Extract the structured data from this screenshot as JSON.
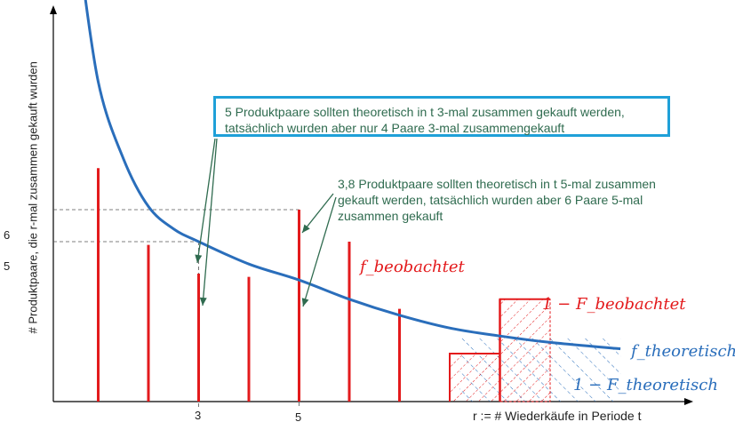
{
  "chart_data": {
    "type": "bar",
    "ylabel": "# Produktpaare, die r-mal zusammen gekauft wurden",
    "xlabel": "r := # Wiederkäufe in Periode t",
    "x_ticks": [
      "3",
      "5"
    ],
    "y_ticks": [
      "5",
      "6"
    ],
    "bars_observed": [
      {
        "r": 1,
        "value": 7.3
      },
      {
        "r": 2,
        "value": 4.9
      },
      {
        "r": 3,
        "value": 4
      },
      {
        "r": 4,
        "value": 3.9
      },
      {
        "r": 5,
        "value": 6
      },
      {
        "r": 6,
        "value": 5
      },
      {
        "r": 7,
        "value": 2.9
      }
    ],
    "tail_steps": [
      {
        "r": 8,
        "value": 1.5
      },
      {
        "r": 9,
        "value": 3.2
      }
    ],
    "theoretical_curve": [
      {
        "r": 0.6,
        "value": 14.3
      },
      {
        "r": 1,
        "value": 10
      },
      {
        "r": 1.5,
        "value": 7.6
      },
      {
        "r": 2,
        "value": 6.1
      },
      {
        "r": 2.5,
        "value": 5.4
      },
      {
        "r": 3,
        "value": 5
      },
      {
        "r": 4,
        "value": 4.3
      },
      {
        "r": 5,
        "value": 3.8
      },
      {
        "r": 6,
        "value": 3.2
      },
      {
        "r": 7,
        "value": 2.7
      },
      {
        "r": 8,
        "value": 2.3
      },
      {
        "r": 9,
        "value": 2.05
      },
      {
        "r": 10,
        "value": 1.85
      },
      {
        "r": 11.4,
        "value": 1.65
      }
    ],
    "series_labels": {
      "f_obs": "f_beobachtet",
      "one_minus_F_obs": "1 − F_beobachtet",
      "f_theo": "f_theoretisch",
      "one_minus_F_theo": "1 − F_theoretisch"
    },
    "colors": {
      "observed": "#e31a1c",
      "theoretical": "#2a6ebb",
      "annotation": "#2f6b4f",
      "box_border": "#1fa0d8"
    }
  },
  "annotations": {
    "box1_line1": "5 Produktpaare sollten theoretisch in t 3-mal zusammen gekauft werden,",
    "box1_line2": "tatsächlich wurden aber nur 4 Paare 3-mal zusammengekauft",
    "box2_line1": "3,8 Produktpaare sollten theoretisch in t 5-mal zusammen",
    "box2_line2": "gekauft werden, tatsächlich wurden aber 6 Paare 5-mal",
    "box2_line3": "zusammen gekauft"
  }
}
